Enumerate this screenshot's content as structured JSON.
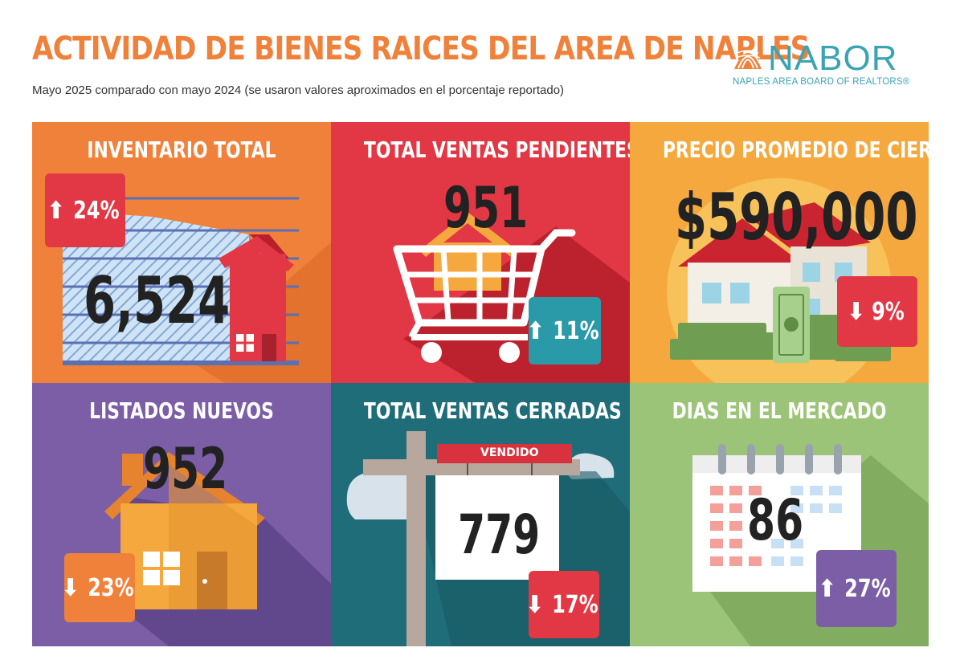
{
  "header": {
    "title": "ACTIVIDAD DE BIENES RAICES DEL AREA DE NAPLES",
    "subtitle": "Mayo 2025 comparado con mayo 2024 (se usaron valores aproximados en el porcentaje reportado)"
  },
  "logo": {
    "name": "NABOR",
    "tagline": "NAPLES AREA BOARD OF REALTORS®",
    "icon": "shell-icon"
  },
  "colors": {
    "title_orange": "#f0813a",
    "tile_orange": "#f0813a",
    "tile_red": "#e23744",
    "tile_amber": "#f5a83e",
    "tile_purple": "#7b5ea6",
    "tile_teal": "#1f6d79",
    "tile_green": "#9cc478",
    "badge_up_red": "#e23744",
    "badge_teal": "#2a9aa8",
    "badge_orange": "#f0813a",
    "badge_purple": "#7b5ea6",
    "brand_teal": "#3aa4b3"
  },
  "tiles": {
    "inventory": {
      "title": "INVENTARIO TOTAL",
      "value": "6,524",
      "change": "24%",
      "direction": "up",
      "icon": "house-chart-icon"
    },
    "pending": {
      "title": "TOTAL VENTAS PENDIENTES",
      "value": "951",
      "change": "11%",
      "direction": "up",
      "icon": "shopping-cart-icon"
    },
    "price": {
      "title": "PRECIO PROMEDIO DE CIERRE",
      "value": "$590,000",
      "change": "9%",
      "direction": "down",
      "icon": "house-money-icon"
    },
    "new_listings": {
      "title": "LISTADOS NUEVOS",
      "value": "952",
      "change": "23%",
      "direction": "down",
      "icon": "house-icon"
    },
    "closed": {
      "title": "TOTAL VENTAS CERRADAS",
      "value": "779",
      "change": "17%",
      "direction": "down",
      "icon": "sold-sign-icon",
      "sign_label": "VENDIDO"
    },
    "days": {
      "title": "DIAS EN EL MERCADO",
      "value": "86",
      "change": "27%",
      "direction": "up",
      "icon": "calendar-icon"
    }
  },
  "arrows": {
    "up": "⬆",
    "down": "⬇"
  }
}
